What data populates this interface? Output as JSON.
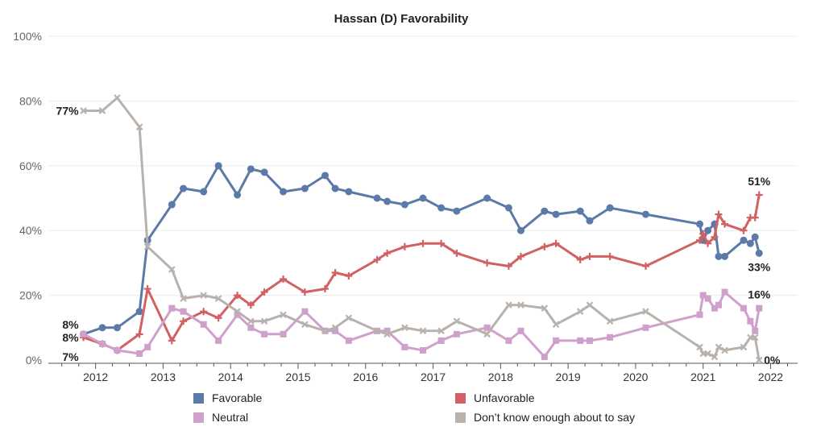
{
  "chart_data": {
    "type": "line",
    "title": "Hassan (D) Favorability",
    "y_ticks": [
      "0%",
      "20%",
      "40%",
      "60%",
      "80%",
      "100%"
    ],
    "x_ticks": [
      "2012",
      "2013",
      "2014",
      "2015",
      "2016",
      "2017",
      "2018",
      "2019",
      "2020",
      "2021",
      "2022"
    ],
    "ylim": [
      0,
      100
    ],
    "xlim": [
      2011.3,
      2022.4
    ],
    "series": [
      {
        "name": "Favorable",
        "color": "#5b7aa8",
        "marker": "circle",
        "points": [
          [
            2011.82,
            8
          ],
          [
            2012.1,
            10
          ],
          [
            2012.32,
            10
          ],
          [
            2012.65,
            15
          ],
          [
            2012.77,
            37
          ],
          [
            2013.13,
            48
          ],
          [
            2013.3,
            53
          ],
          [
            2013.6,
            52
          ],
          [
            2013.82,
            60
          ],
          [
            2014.1,
            51
          ],
          [
            2014.3,
            59
          ],
          [
            2014.5,
            58
          ],
          [
            2014.78,
            52
          ],
          [
            2015.1,
            53
          ],
          [
            2015.4,
            57
          ],
          [
            2015.55,
            53
          ],
          [
            2015.75,
            52
          ],
          [
            2016.17,
            50
          ],
          [
            2016.32,
            49
          ],
          [
            2016.58,
            48
          ],
          [
            2016.85,
            50
          ],
          [
            2017.12,
            47
          ],
          [
            2017.35,
            46
          ],
          [
            2017.8,
            50
          ],
          [
            2018.12,
            47
          ],
          [
            2018.3,
            40
          ],
          [
            2018.65,
            46
          ],
          [
            2018.82,
            45
          ],
          [
            2019.18,
            46
          ],
          [
            2019.32,
            43
          ],
          [
            2019.62,
            47
          ],
          [
            2020.15,
            45
          ],
          [
            2020.95,
            42
          ],
          [
            2021.0,
            37
          ],
          [
            2021.07,
            40
          ],
          [
            2021.17,
            42
          ],
          [
            2021.23,
            32
          ],
          [
            2021.32,
            32
          ],
          [
            2021.6,
            37
          ],
          [
            2021.7,
            36
          ],
          [
            2021.77,
            38
          ],
          [
            2021.83,
            33
          ]
        ]
      },
      {
        "name": "Unfavorable",
        "color": "#d16162",
        "marker": "plus",
        "points": [
          [
            2011.82,
            7
          ],
          [
            2012.1,
            5
          ],
          [
            2012.32,
            3
          ],
          [
            2012.65,
            8
          ],
          [
            2012.77,
            22
          ],
          [
            2013.13,
            6
          ],
          [
            2013.3,
            12
          ],
          [
            2013.6,
            15
          ],
          [
            2013.82,
            13
          ],
          [
            2014.1,
            20
          ],
          [
            2014.3,
            17
          ],
          [
            2014.5,
            21
          ],
          [
            2014.78,
            25
          ],
          [
            2015.1,
            21
          ],
          [
            2015.4,
            22
          ],
          [
            2015.55,
            27
          ],
          [
            2015.75,
            26
          ],
          [
            2016.17,
            31
          ],
          [
            2016.32,
            33
          ],
          [
            2016.58,
            35
          ],
          [
            2016.85,
            36
          ],
          [
            2017.12,
            36
          ],
          [
            2017.35,
            33
          ],
          [
            2017.8,
            30
          ],
          [
            2018.12,
            29
          ],
          [
            2018.3,
            32
          ],
          [
            2018.65,
            35
          ],
          [
            2018.82,
            36
          ],
          [
            2019.18,
            31
          ],
          [
            2019.32,
            32
          ],
          [
            2019.62,
            32
          ],
          [
            2020.15,
            29
          ],
          [
            2020.95,
            37
          ],
          [
            2021.0,
            39
          ],
          [
            2021.07,
            36
          ],
          [
            2021.17,
            38
          ],
          [
            2021.23,
            45
          ],
          [
            2021.32,
            42
          ],
          [
            2021.6,
            40
          ],
          [
            2021.7,
            44
          ],
          [
            2021.77,
            44
          ],
          [
            2021.83,
            51
          ]
        ]
      },
      {
        "name": "Neutral",
        "color": "#cfa0cc",
        "marker": "square",
        "points": [
          [
            2011.82,
            8
          ],
          [
            2012.1,
            5
          ],
          [
            2012.32,
            3
          ],
          [
            2012.65,
            2
          ],
          [
            2012.77,
            4
          ],
          [
            2013.13,
            16
          ],
          [
            2013.3,
            15
          ],
          [
            2013.6,
            11
          ],
          [
            2013.82,
            6
          ],
          [
            2014.1,
            14
          ],
          [
            2014.3,
            10
          ],
          [
            2014.5,
            8
          ],
          [
            2014.78,
            8
          ],
          [
            2015.1,
            15
          ],
          [
            2015.4,
            9
          ],
          [
            2015.55,
            9
          ],
          [
            2015.75,
            6
          ],
          [
            2016.17,
            9
          ],
          [
            2016.32,
            9
          ],
          [
            2016.58,
            4
          ],
          [
            2016.85,
            3
          ],
          [
            2017.12,
            6
          ],
          [
            2017.35,
            8
          ],
          [
            2017.8,
            10
          ],
          [
            2018.12,
            6
          ],
          [
            2018.3,
            9
          ],
          [
            2018.65,
            1
          ],
          [
            2018.82,
            6
          ],
          [
            2019.18,
            6
          ],
          [
            2019.32,
            6
          ],
          [
            2019.62,
            7
          ],
          [
            2020.15,
            10
          ],
          [
            2020.95,
            14
          ],
          [
            2021.0,
            20
          ],
          [
            2021.07,
            19
          ],
          [
            2021.17,
            16
          ],
          [
            2021.23,
            17
          ],
          [
            2021.32,
            21
          ],
          [
            2021.6,
            16
          ],
          [
            2021.7,
            12
          ],
          [
            2021.77,
            9
          ],
          [
            2021.83,
            16
          ]
        ]
      },
      {
        "name": "Don’t know enough about to say",
        "color": "#b9b1ab",
        "marker": "x",
        "points": [
          [
            2011.82,
            77
          ],
          [
            2012.1,
            77
          ],
          [
            2012.32,
            81
          ],
          [
            2012.65,
            72
          ],
          [
            2012.77,
            35
          ],
          [
            2013.13,
            28
          ],
          [
            2013.3,
            19
          ],
          [
            2013.6,
            20
          ],
          [
            2013.82,
            19
          ],
          [
            2014.1,
            15
          ],
          [
            2014.3,
            12
          ],
          [
            2014.5,
            12
          ],
          [
            2014.78,
            14
          ],
          [
            2015.1,
            11
          ],
          [
            2015.4,
            9
          ],
          [
            2015.55,
            10
          ],
          [
            2015.75,
            13
          ],
          [
            2016.17,
            9
          ],
          [
            2016.32,
            8
          ],
          [
            2016.58,
            10
          ],
          [
            2016.85,
            9
          ],
          [
            2017.12,
            9
          ],
          [
            2017.35,
            12
          ],
          [
            2017.8,
            8
          ],
          [
            2018.12,
            17
          ],
          [
            2018.3,
            17
          ],
          [
            2018.65,
            16
          ],
          [
            2018.82,
            11
          ],
          [
            2019.18,
            15
          ],
          [
            2019.32,
            17
          ],
          [
            2019.62,
            12
          ],
          [
            2020.15,
            15
          ],
          [
            2020.95,
            4
          ],
          [
            2021.0,
            2
          ],
          [
            2021.07,
            2
          ],
          [
            2021.17,
            1
          ],
          [
            2021.23,
            4
          ],
          [
            2021.32,
            3
          ],
          [
            2021.6,
            4
          ],
          [
            2021.7,
            7
          ],
          [
            2021.77,
            7
          ],
          [
            2021.83,
            0
          ]
        ]
      }
    ],
    "annotations": [
      {
        "text": "77%",
        "x": 2011.82,
        "y": 77,
        "side": "left"
      },
      {
        "text": "8%",
        "x": 2011.82,
        "y": 11,
        "side": "left"
      },
      {
        "text": "8%",
        "x": 2011.82,
        "y": 7,
        "side": "left"
      },
      {
        "text": "7%",
        "x": 2011.82,
        "y": 1,
        "side": "left"
      },
      {
        "text": "51%",
        "x": 2021.83,
        "y": 51,
        "side": "above"
      },
      {
        "text": "33%",
        "x": 2021.83,
        "y": 33,
        "side": "below"
      },
      {
        "text": "16%",
        "x": 2021.83,
        "y": 16,
        "side": "above"
      },
      {
        "text": "0%",
        "x": 2021.83,
        "y": 0,
        "side": "right"
      }
    ],
    "grid": "horizontal",
    "legend_position": "bottom"
  },
  "legend": [
    {
      "label": "Favorable",
      "color": "#5b7aa8"
    },
    {
      "label": "Unfavorable",
      "color": "#d16162"
    },
    {
      "label": "Neutral",
      "color": "#cfa0cc"
    },
    {
      "label": "Don’t know enough about to say",
      "color": "#b9b1ab"
    }
  ]
}
